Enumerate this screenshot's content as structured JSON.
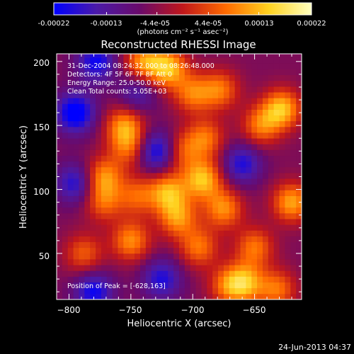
{
  "colorbar": {
    "tick_labels": [
      "-0.00022",
      "-0.00013",
      "-4.4e-05",
      "4.4e-05",
      "0.00013",
      "0.00022"
    ],
    "tick_values": [
      -0.00022,
      -0.00013,
      -4.4e-05,
      4.4e-05,
      0.00013,
      0.00022
    ],
    "range": [
      -0.00022,
      0.00022
    ],
    "unit_label": "(photons cm⁻² s⁻¹ asec⁻²)",
    "colormap": [
      "#0000ff",
      "#4b1aa8",
      "#6a0a6a",
      "#c0171b",
      "#ff6a00",
      "#ffd21f",
      "#ffffbf"
    ]
  },
  "chart_data": {
    "type": "heatmap",
    "title": "Reconstructed RHESSI Image",
    "xlabel": "Heliocentric X (arcsec)",
    "ylabel": "Heliocentric Y (arcsec)",
    "xlim": [
      -810,
      -612
    ],
    "ylim": [
      14,
      206
    ],
    "x_ticks": [
      -800,
      -750,
      -700,
      -650
    ],
    "y_ticks": [
      50,
      100,
      150,
      200
    ],
    "x_tick_labels": [
      "−800",
      "−750",
      "−700",
      "−650"
    ],
    "y_tick_labels": [
      "50",
      "100",
      "150",
      "200"
    ],
    "annotations": {
      "time_range": "31-Dec-2004 08:24:32.000 to 08:26:48.000",
      "detectors": "Detectors: 4F 5F 6F 7F 8F  Att 0",
      "energy_range": "Energy Range: 25.0-50.0 keV",
      "clean": "Clean     Total counts: 5.05E+03",
      "peak": "Position of Peak = [-628,163]"
    },
    "peak_position": [
      -628,
      163
    ],
    "blobs": [
      {
        "x": -720,
        "y": 195,
        "v": 1.0
      },
      {
        "x": -740,
        "y": 200,
        "v": 0.8
      },
      {
        "x": -700,
        "y": 175,
        "v": 0.7
      },
      {
        "x": -678,
        "y": 178,
        "v": 0.7
      },
      {
        "x": -628,
        "y": 163,
        "v": 1.0
      },
      {
        "x": -645,
        "y": 150,
        "v": 0.7
      },
      {
        "x": -755,
        "y": 150,
        "v": 0.8
      },
      {
        "x": -752,
        "y": 133,
        "v": 0.6
      },
      {
        "x": -692,
        "y": 108,
        "v": 1.0
      },
      {
        "x": -690,
        "y": 140,
        "v": 0.7
      },
      {
        "x": -710,
        "y": 130,
        "v": 0.6
      },
      {
        "x": -772,
        "y": 110,
        "v": 0.8
      },
      {
        "x": -772,
        "y": 90,
        "v": 0.6
      },
      {
        "x": -720,
        "y": 98,
        "v": 0.9
      },
      {
        "x": -712,
        "y": 78,
        "v": 0.8
      },
      {
        "x": -745,
        "y": 95,
        "v": 0.6
      },
      {
        "x": -750,
        "y": 60,
        "v": 0.8
      },
      {
        "x": -788,
        "y": 50,
        "v": 0.6
      },
      {
        "x": -695,
        "y": 55,
        "v": 0.7
      },
      {
        "x": -675,
        "y": 85,
        "v": 0.8
      },
      {
        "x": -620,
        "y": 90,
        "v": 0.9
      },
      {
        "x": -650,
        "y": 55,
        "v": 0.7
      },
      {
        "x": -658,
        "y": 27,
        "v": 0.9
      },
      {
        "x": -632,
        "y": 22,
        "v": 0.7
      },
      {
        "x": -672,
        "y": 25,
        "v": 0.6
      },
      {
        "x": -795,
        "y": 160,
        "v": -1.0
      },
      {
        "x": -778,
        "y": 200,
        "v": -0.8
      },
      {
        "x": -728,
        "y": 130,
        "v": -0.9
      },
      {
        "x": -660,
        "y": 120,
        "v": -0.7
      },
      {
        "x": -795,
        "y": 105,
        "v": -0.7
      },
      {
        "x": -780,
        "y": 20,
        "v": -0.8
      },
      {
        "x": -725,
        "y": 30,
        "v": -0.7
      },
      {
        "x": -745,
        "y": 175,
        "v": -0.5
      }
    ]
  },
  "footer": {
    "timestamp": "24-Jun-2013 04:37"
  }
}
